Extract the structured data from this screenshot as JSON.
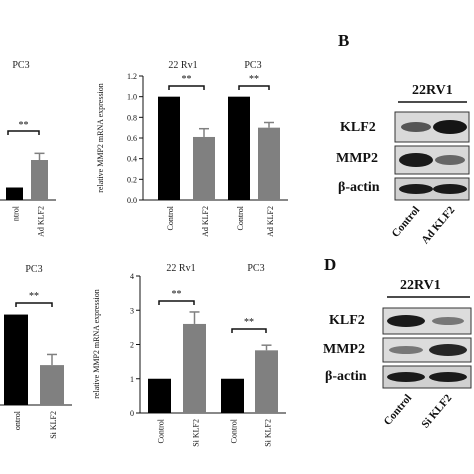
{
  "panels": {
    "B": {
      "letter": "B",
      "cell_line": "22RV1",
      "bands": [
        "KLF2",
        "MMP2",
        "β-actin"
      ],
      "lanes": [
        "Control",
        "Ad KLF2"
      ]
    },
    "D": {
      "letter": "D",
      "cell_line": "22RV1",
      "bands": [
        "KLF2",
        "MMP2",
        "β-actin"
      ],
      "lanes": [
        "Control",
        "Si KLF2"
      ]
    }
  },
  "chart_data": [
    {
      "type": "bar",
      "title": "PC3",
      "categories": [
        "ntrol",
        "Ad KLF2"
      ],
      "values": [
        0.15,
        0.48
      ],
      "errors": [
        0,
        0.08
      ],
      "colors": [
        "#000000",
        "#808080"
      ],
      "ylim": [
        0,
        1.2
      ],
      "annotations": [
        "**"
      ]
    },
    {
      "type": "bar",
      "ylabel": "relative MMP2 mRNA expression",
      "group_titles": [
        "22 Rv1",
        "PC3"
      ],
      "categories": [
        "Control",
        "Ad KLF2",
        "Control",
        "Ad KLF2"
      ],
      "values": [
        1.0,
        0.61,
        1.0,
        0.7
      ],
      "errors": [
        0,
        0.08,
        0,
        0.05
      ],
      "colors": [
        "#000000",
        "#808080",
        "#000000",
        "#808080"
      ],
      "ylim": [
        0,
        1.2
      ],
      "yticks": [
        "0.0",
        "0.2",
        "0.4",
        "0.6",
        "0.8",
        "1.0",
        "1.2"
      ],
      "annotations": [
        "**",
        "**"
      ]
    },
    {
      "type": "bar",
      "title": "PC3",
      "categories": [
        "ontrol",
        "Si KLF2"
      ],
      "values": [
        3.4,
        1.5
      ],
      "errors": [
        0,
        0.4
      ],
      "colors": [
        "#000000",
        "#808080"
      ],
      "ylim": [
        0,
        5
      ],
      "annotations": [
        "**"
      ]
    },
    {
      "type": "bar",
      "ylabel": "relative MMP2 mRNA expression",
      "group_titles": [
        "22 Rv1",
        "PC3"
      ],
      "categories": [
        "Control",
        "Si KLF2",
        "Control",
        "Si KLF2"
      ],
      "values": [
        1.0,
        2.6,
        1.0,
        1.83
      ],
      "errors": [
        0,
        0.35,
        0,
        0.15
      ],
      "colors": [
        "#000000",
        "#808080",
        "#000000",
        "#808080"
      ],
      "ylim": [
        0,
        4
      ],
      "yticks": [
        "0",
        "1",
        "2",
        "3",
        "4"
      ],
      "annotations": [
        "**",
        "**"
      ]
    }
  ]
}
